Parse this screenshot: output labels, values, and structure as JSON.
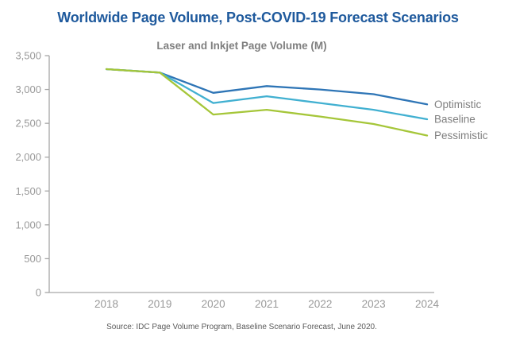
{
  "page": {
    "title": "Worldwide Page Volume, Post-COVID-19 Forecast Scenarios",
    "subtitle": "Laser and Inkjet Page Volume (M)",
    "source": "Source:  IDC Page Volume Program, Baseline Scenario Forecast, June 2020."
  },
  "colors": {
    "title_text": "#1f5a9d",
    "subtitle_text": "#7f7f7f",
    "axis_line": "#a6a6a6",
    "tick_label": "#999999",
    "series_end_label": "#7f7f7f",
    "source_text": "#595959"
  },
  "chart_data": {
    "type": "line",
    "title": "Laser and Inkjet Page Volume (M)",
    "categories": [
      "2018",
      "2019",
      "2020",
      "2021",
      "2022",
      "2023",
      "2024"
    ],
    "series": [
      {
        "name": "Optimistic",
        "color": "#2e75b6",
        "values": [
          3300,
          3250,
          2950,
          3050,
          3000,
          2930,
          2780
        ]
      },
      {
        "name": "Baseline",
        "color": "#41b0d1",
        "values": [
          3300,
          3250,
          2800,
          2900,
          2800,
          2700,
          2560
        ]
      },
      {
        "name": "Pessimistic",
        "color": "#a5c639",
        "values": [
          3300,
          3250,
          2630,
          2700,
          2600,
          2490,
          2320
        ]
      }
    ],
    "ylim": [
      0,
      3500
    ],
    "ytick_step": 500,
    "ytick_labels": [
      "0",
      "500",
      "1,000",
      "1,500",
      "2,000",
      "2,500",
      "3,000",
      "3,500"
    ],
    "grid": false,
    "legend_position": "right-end-labels"
  }
}
